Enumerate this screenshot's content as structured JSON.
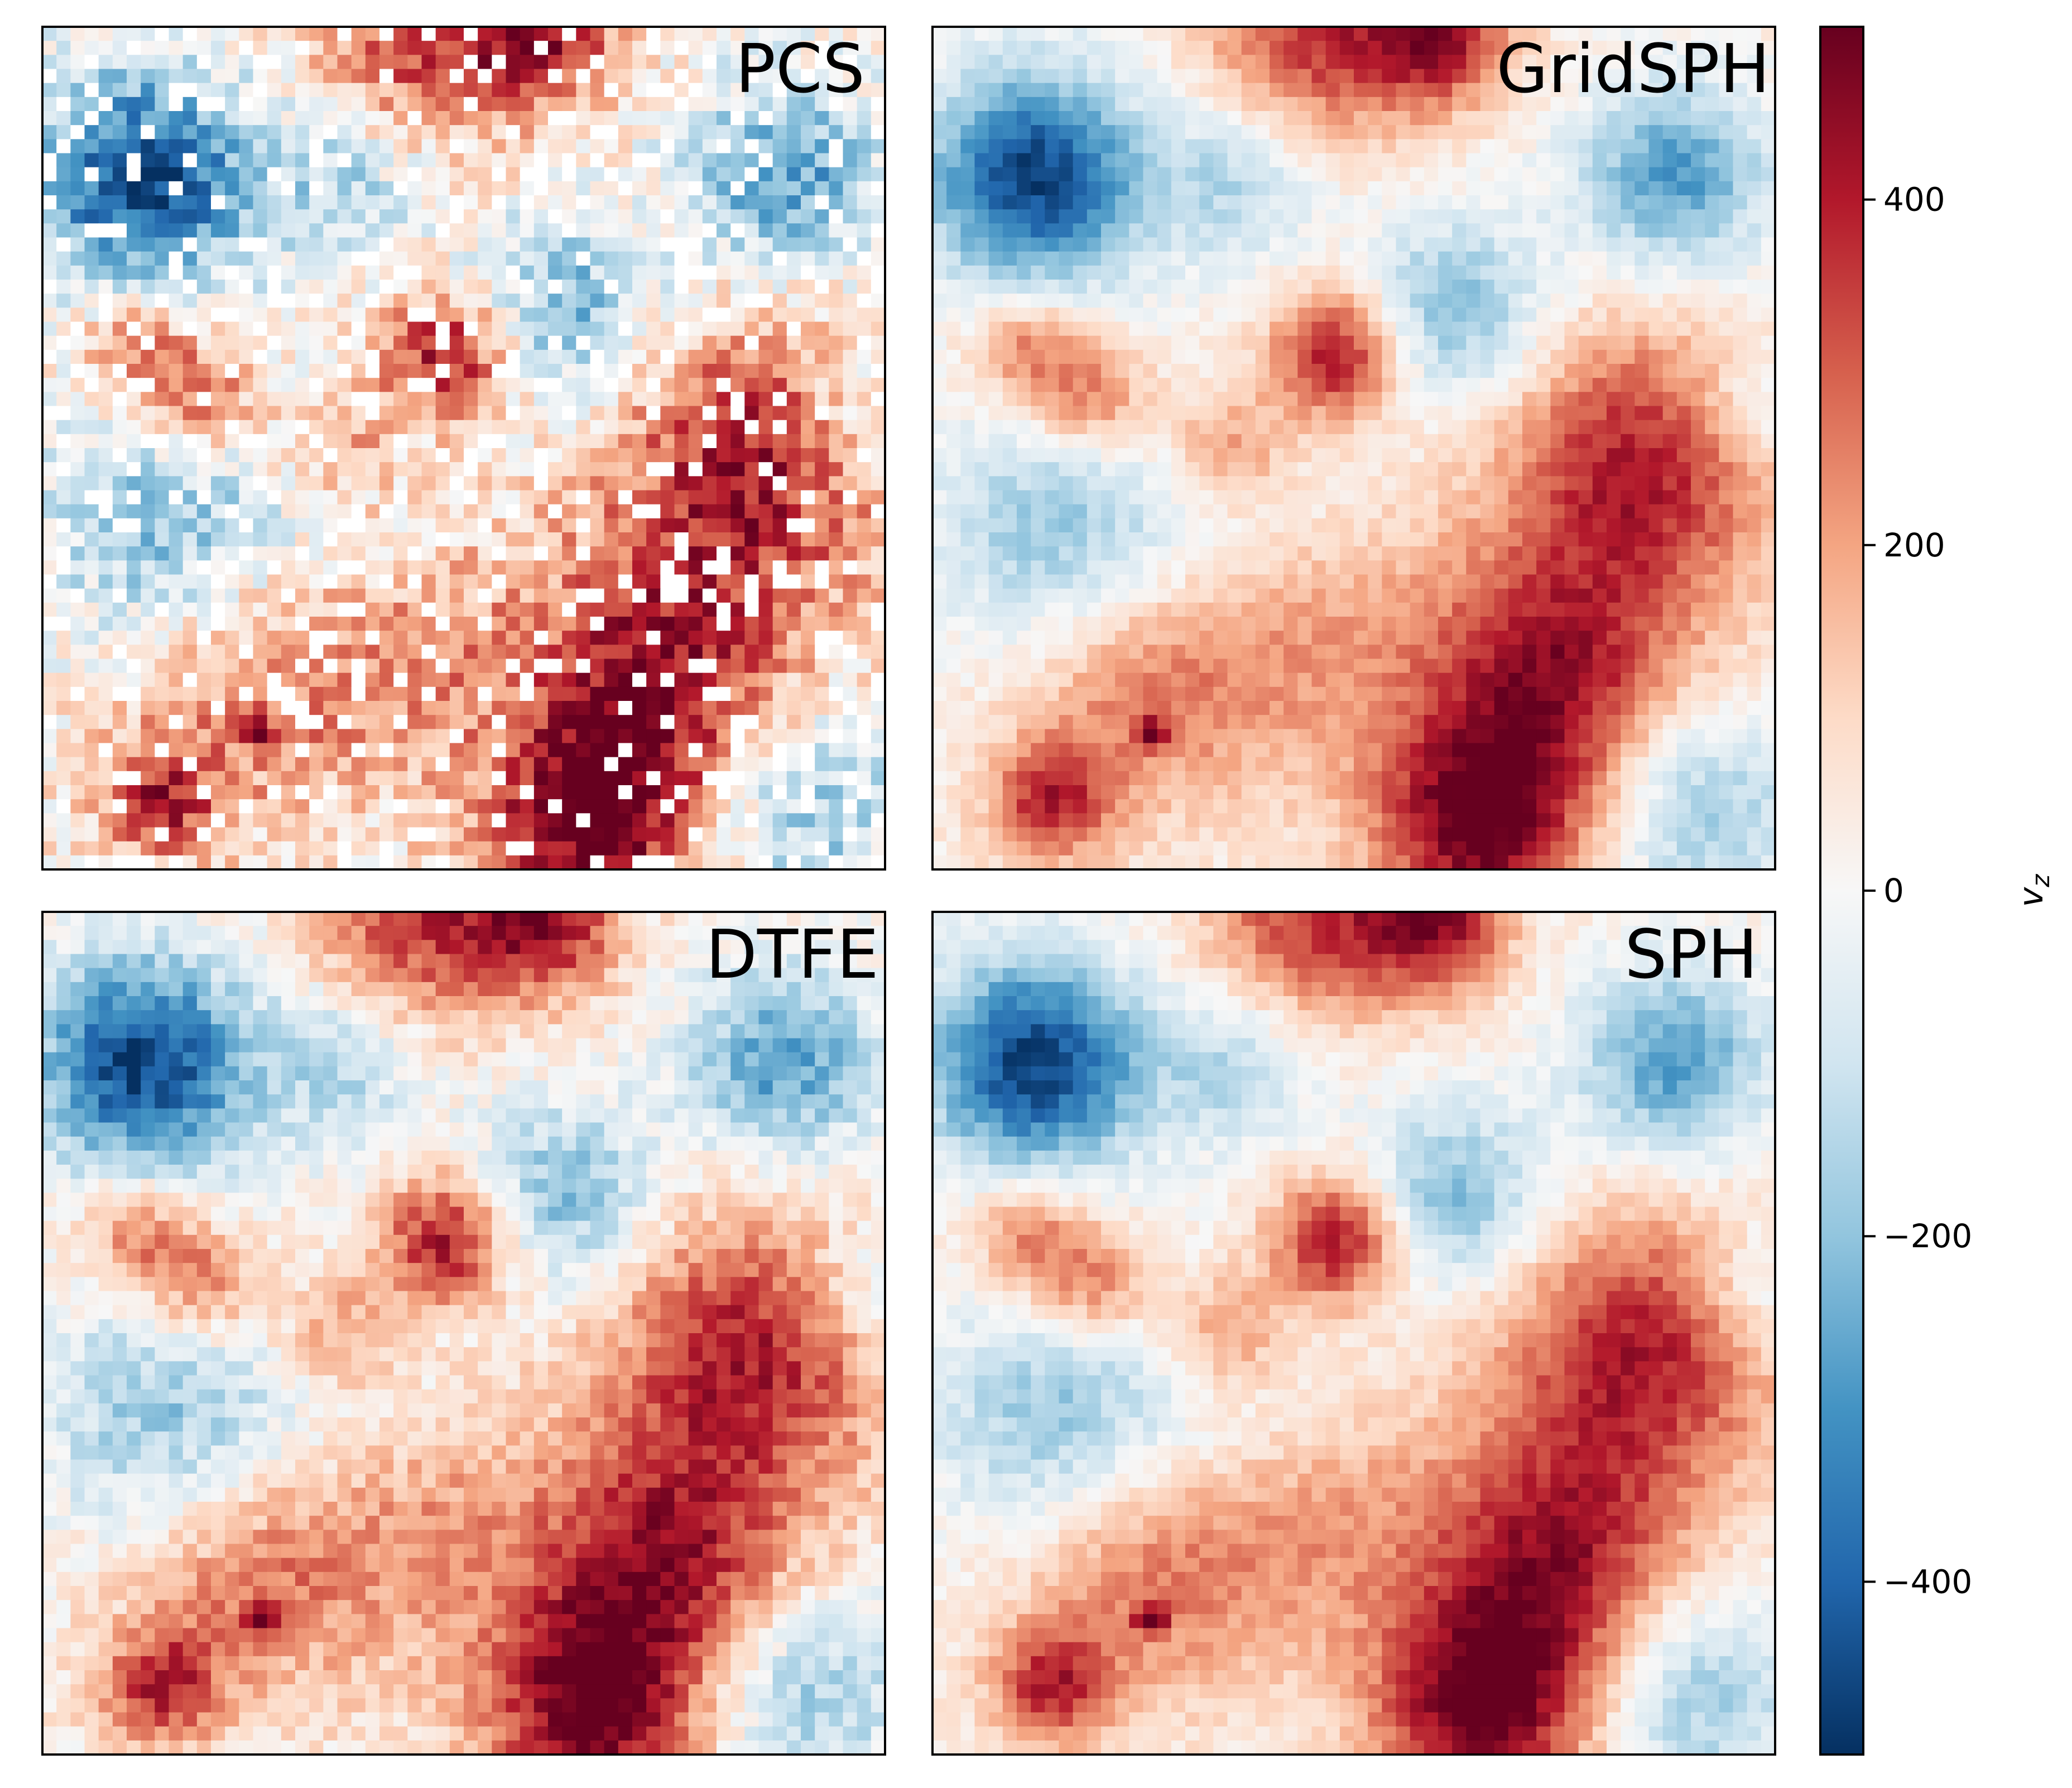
{
  "chart_data": {
    "type": "heatmap",
    "colormap": "RdBu_r",
    "panels": [
      {
        "title": "PCS",
        "position": "top-left"
      },
      {
        "title": "GridSPH",
        "position": "top-right"
      },
      {
        "title": "DTFE",
        "position": "bottom-left"
      },
      {
        "title": "SPH",
        "position": "bottom-right"
      }
    ],
    "colorbar": {
      "label": "v",
      "label_subscript": "z",
      "range": [
        -500,
        500
      ],
      "ticks": [
        -400,
        -200,
        0,
        200,
        400
      ],
      "tick_labels": [
        "−400",
        "−200",
        "0",
        "200",
        "400"
      ]
    },
    "field_structures": [
      {
        "name": "blue-void-upper-left",
        "u": 0.12,
        "v": 0.18,
        "value": -500,
        "spread": 0.09
      },
      {
        "name": "blue-upper-right",
        "u": 0.88,
        "v": 0.18,
        "value": -320,
        "spread": 0.08
      },
      {
        "name": "blue-upper-center",
        "u": 0.62,
        "v": 0.34,
        "value": -260,
        "spread": 0.08
      },
      {
        "name": "blue-mid-left",
        "u": 0.14,
        "v": 0.6,
        "value": -220,
        "spread": 0.1
      },
      {
        "name": "blue-center",
        "u": 0.36,
        "v": 0.56,
        "value": -120,
        "spread": 0.1
      },
      {
        "name": "blue-center-top",
        "u": 0.36,
        "v": 0.18,
        "value": -180,
        "spread": 0.07
      },
      {
        "name": "blue-lower-right",
        "u": 0.9,
        "v": 0.92,
        "value": -240,
        "spread": 0.09
      },
      {
        "name": "blue-mid-right-edge",
        "u": 0.98,
        "v": 0.45,
        "value": -150,
        "spread": 0.06
      },
      {
        "name": "red-top-band",
        "u": 0.45,
        "v": 0.01,
        "value": 330,
        "spread": 0.09
      },
      {
        "name": "red-top-center",
        "u": 0.6,
        "v": 0.01,
        "value": 380,
        "spread": 0.06
      },
      {
        "name": "red-cluster-center",
        "u": 0.48,
        "v": 0.39,
        "value": 420,
        "spread": 0.055
      },
      {
        "name": "red-filament-left",
        "u": 0.19,
        "v": 0.44,
        "value": 260,
        "spread": 0.05
      },
      {
        "name": "red-filament-left-b",
        "u": 0.11,
        "v": 0.38,
        "value": 230,
        "spread": 0.045
      },
      {
        "name": "red-center-patch",
        "u": 0.35,
        "v": 0.5,
        "value": 240,
        "spread": 0.055
      },
      {
        "name": "red-right",
        "u": 0.84,
        "v": 0.52,
        "value": 370,
        "spread": 0.12
      },
      {
        "name": "red-lower-right",
        "u": 0.74,
        "v": 0.78,
        "value": 380,
        "spread": 0.11
      },
      {
        "name": "red-bottom",
        "u": 0.65,
        "v": 0.95,
        "value": 440,
        "spread": 0.09
      },
      {
        "name": "red-lower-center",
        "u": 0.44,
        "v": 0.72,
        "value": 180,
        "spread": 0.12
      },
      {
        "name": "red-bottom-left",
        "u": 0.14,
        "v": 0.92,
        "value": 330,
        "spread": 0.05
      },
      {
        "name": "red-lower-left",
        "u": 0.24,
        "v": 0.8,
        "value": 200,
        "spread": 0.1
      },
      {
        "name": "red-node-small",
        "u": 0.26,
        "v": 0.84,
        "value": 400,
        "spread": 0.012
      }
    ]
  }
}
